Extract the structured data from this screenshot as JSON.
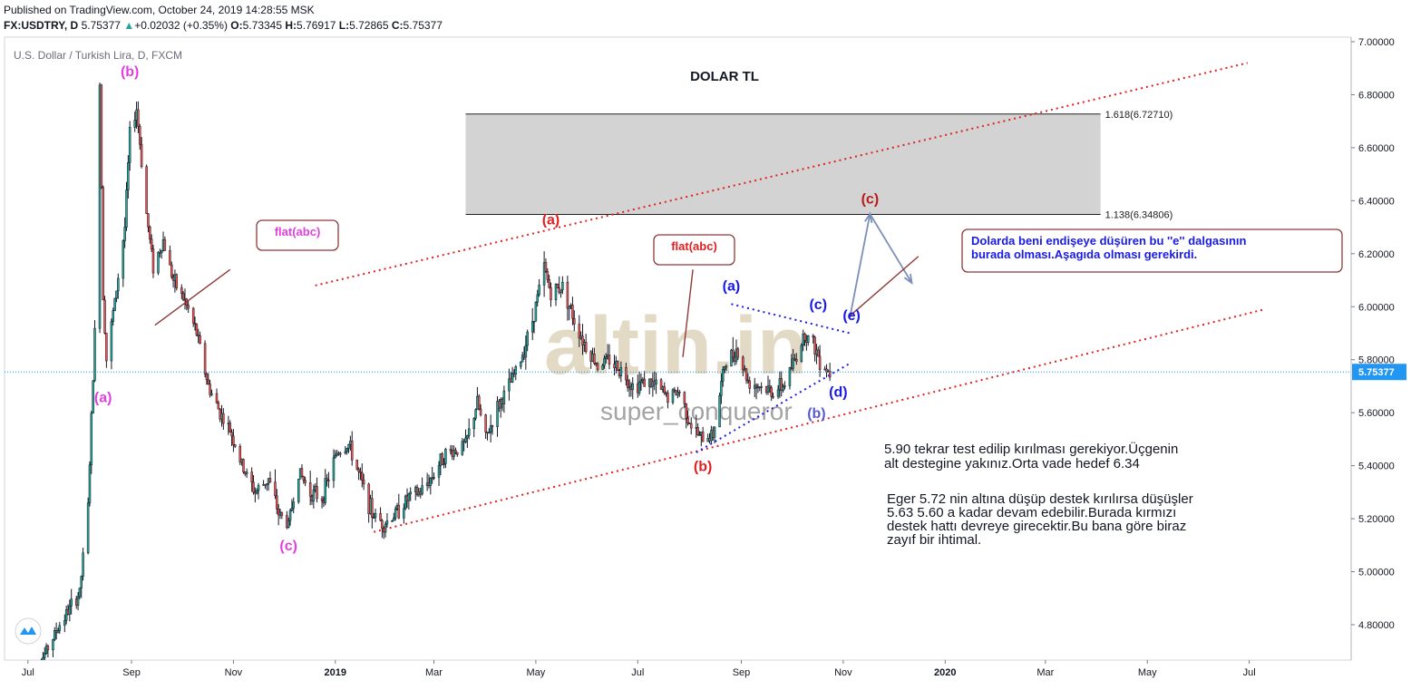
{
  "header": {
    "published": "Published on TradingView.com, October 24, 2019 14:28:55 MSK",
    "symbol": "FX:USDTRY, D",
    "last": "5.75377",
    "change_arrow": "▲",
    "change": "+0.02032 (+0.35%)",
    "o_label": "O:",
    "o": "5.73345",
    "h_label": "H:",
    "h": "5.76917",
    "l_label": "L:",
    "l": "5.72865",
    "c_label": "C:",
    "c": "5.75377",
    "up_color": "#26a69a"
  },
  "chart_data": {
    "type": "candlestick",
    "instrument": "U.S. Dollar / Turkish Lira, D, FXCM",
    "title": "DOLAR TL",
    "ylim": [
      4.63,
      7.0
    ],
    "y_ticks": [
      "7.00000",
      "6.80000",
      "6.60000",
      "6.40000",
      "6.20000",
      "6.00000",
      "5.80000",
      "5.60000",
      "5.40000",
      "5.20000",
      "5.00000",
      "4.80000"
    ],
    "x_ticks": [
      "Jul",
      "Sep",
      "Nov",
      "2019",
      "Mar",
      "May",
      "Jul",
      "Sep",
      "Nov",
      "2020",
      "Mar",
      "May",
      "Jul"
    ],
    "last_price": "5.75377",
    "last_price_value": 5.75377,
    "price_path": [
      [
        "2018-07-02",
        4.58
      ],
      [
        "2018-07-20",
        4.8
      ],
      [
        "2018-08-01",
        4.92
      ],
      [
        "2018-08-06",
        5.25
      ],
      [
        "2018-08-10",
        5.9
      ],
      [
        "2018-08-13",
        6.86
      ],
      [
        "2018-08-15",
        6.05
      ],
      [
        "2018-08-17",
        5.8
      ],
      [
        "2018-08-22",
        6.02
      ],
      [
        "2018-08-28",
        6.3
      ],
      [
        "2018-08-31",
        6.65
      ],
      [
        "2018-09-04",
        6.75
      ],
      [
        "2018-09-10",
        6.35
      ],
      [
        "2018-09-14",
        6.15
      ],
      [
        "2018-09-20",
        6.25
      ],
      [
        "2018-09-26",
        6.1
      ],
      [
        "2018-10-03",
        6.02
      ],
      [
        "2018-10-10",
        5.9
      ],
      [
        "2018-10-17",
        5.7
      ],
      [
        "2018-10-24",
        5.6
      ],
      [
        "2018-10-31",
        5.52
      ],
      [
        "2018-11-06",
        5.4
      ],
      [
        "2018-11-14",
        5.3
      ],
      [
        "2018-11-22",
        5.35
      ],
      [
        "2018-11-28",
        5.22
      ],
      [
        "2018-12-04",
        5.18
      ],
      [
        "2018-12-10",
        5.38
      ],
      [
        "2018-12-17",
        5.3
      ],
      [
        "2018-12-24",
        5.28
      ],
      [
        "2019-01-02",
        5.45
      ],
      [
        "2019-01-09",
        5.48
      ],
      [
        "2019-01-16",
        5.35
      ],
      [
        "2019-01-23",
        5.22
      ],
      [
        "2019-01-30",
        5.18
      ],
      [
        "2019-02-06",
        5.22
      ],
      [
        "2019-02-14",
        5.28
      ],
      [
        "2019-02-21",
        5.3
      ],
      [
        "2019-02-28",
        5.36
      ],
      [
        "2019-03-07",
        5.44
      ],
      [
        "2019-03-14",
        5.46
      ],
      [
        "2019-03-20",
        5.48
      ],
      [
        "2019-03-27",
        5.64
      ],
      [
        "2019-04-01",
        5.5
      ],
      [
        "2019-04-08",
        5.62
      ],
      [
        "2019-04-15",
        5.7
      ],
      [
        "2019-04-22",
        5.8
      ],
      [
        "2019-04-29",
        5.95
      ],
      [
        "2019-05-06",
        6.15
      ],
      [
        "2019-05-10",
        6.05
      ],
      [
        "2019-05-17",
        6.08
      ],
      [
        "2019-05-24",
        5.95
      ],
      [
        "2019-05-31",
        5.85
      ],
      [
        "2019-06-07",
        5.78
      ],
      [
        "2019-06-14",
        5.8
      ],
      [
        "2019-06-21",
        5.76
      ],
      [
        "2019-06-28",
        5.7
      ],
      [
        "2019-07-05",
        5.72
      ],
      [
        "2019-07-12",
        5.7
      ],
      [
        "2019-07-19",
        5.66
      ],
      [
        "2019-07-26",
        5.68
      ],
      [
        "2019-08-02",
        5.55
      ],
      [
        "2019-08-08",
        5.5
      ],
      [
        "2019-08-15",
        5.52
      ],
      [
        "2019-08-22",
        5.78
      ],
      [
        "2019-08-29",
        5.84
      ],
      [
        "2019-09-05",
        5.72
      ],
      [
        "2019-09-12",
        5.7
      ],
      [
        "2019-09-19",
        5.68
      ],
      [
        "2019-09-26",
        5.7
      ],
      [
        "2019-10-03",
        5.8
      ],
      [
        "2019-10-09",
        5.9
      ],
      [
        "2019-10-14",
        5.86
      ],
      [
        "2019-10-18",
        5.8
      ],
      [
        "2019-10-24",
        5.75
      ]
    ],
    "fib_levels": [
      {
        "label": "1.618(6.72710)",
        "value": 6.7271
      },
      {
        "label": "1.138(6.34806)",
        "value": 6.34806
      }
    ],
    "fib_zone": {
      "from": "2019-03-20",
      "to": "2020-04-03"
    },
    "channel_upper": {
      "from": [
        "2018-12-20",
        6.08
      ],
      "to": [
        "2020-06-30",
        6.92
      ]
    },
    "channel_lower": {
      "from": [
        "2019-01-24",
        5.15
      ],
      "to": [
        "2020-07-10",
        5.99
      ]
    },
    "triangle_upper": {
      "from": [
        "2019-08-26",
        6.01
      ],
      "to": [
        "2019-11-05",
        5.9
      ]
    },
    "triangle_lower": {
      "from": [
        "2019-08-05",
        5.45
      ],
      "to": [
        "2019-11-06",
        5.79
      ]
    },
    "projection": [
      [
        "2019-11-05",
        5.96
      ],
      [
        "2019-11-17",
        6.35
      ],
      [
        "2019-12-12",
        6.09
      ]
    ],
    "callout_lines": [
      {
        "from": [
          "2018-09-15",
          5.93
        ],
        "to": [
          "2018-10-30",
          6.14
        ]
      },
      {
        "from": [
          "2019-07-28",
          5.81
        ],
        "to": [
          "2019-08-03",
          6.14
        ]
      },
      {
        "from": [
          "2019-11-04",
          5.96
        ],
        "to": [
          "2019-12-16",
          6.19
        ]
      }
    ],
    "wave_labels": [
      {
        "text": "(b)",
        "date": "2018-08-31",
        "value": 6.87,
        "color": "#e040e0"
      },
      {
        "text": "(a)",
        "date": "2018-08-15",
        "value": 5.64,
        "color": "#e040e0"
      },
      {
        "text": "(c)",
        "date": "2018-12-04",
        "value": 5.08,
        "color": "#e040e0"
      },
      {
        "text": "(a)",
        "date": "2019-05-10",
        "value": 6.31,
        "color": "#e02020"
      },
      {
        "text": "(b)",
        "date": "2019-08-09",
        "value": 5.38,
        "color": "#e02020"
      },
      {
        "text": "(c)",
        "date": "2019-11-17",
        "value": 6.39,
        "color": "#b71c1c"
      },
      {
        "text": "(a)",
        "date": "2019-08-26",
        "value": 6.06,
        "color": "#1a1ae6"
      },
      {
        "text": "(b)",
        "date": "2019-10-16",
        "value": 5.58,
        "color": "#5a5ad0"
      },
      {
        "text": "(c)",
        "date": "2019-10-17",
        "value": 5.99,
        "color": "#1a1ae6"
      },
      {
        "text": "(d)",
        "date": "2019-10-29",
        "value": 5.66,
        "color": "#1a1ae6"
      },
      {
        "text": "(e)",
        "date": "2019-11-06",
        "value": 5.95,
        "color": "#1a1ae6"
      }
    ],
    "callouts": [
      {
        "text": "flat(abc)",
        "color": "#e040e0"
      },
      {
        "text": "flat(abc)",
        "color": "#e02020"
      },
      {
        "text": "Dolarda beni endişeye düşüren bu ''e'' dalgasının burada olması.Aşagıda olması gerekirdi.",
        "color": "#1a1ae6"
      }
    ],
    "annotations": [
      "5.90 tekrar test edilip kırılması gerekiyor.Üçgenin alt destegine yakınız.Orta vade hedef 6.34",
      "Eger 5.72 nin altına düşüp destek kırılırsa düşüşler 5.63  5.60 a kadar devam edebilir.Burada kırmızı destek hattı devreye girecektir.Bu bana göre biraz zayıf bir ihtimal."
    ],
    "watermark": [
      "altin.in",
      "super_conqueror"
    ],
    "colors": {
      "up": "#26a69a",
      "down": "#ef5350",
      "candle_body": "#131722",
      "last_price_tag": "#2196f3",
      "channel": "#e02020",
      "triangle": "#1a1ae6",
      "zone": "#d3d3d3"
    }
  }
}
